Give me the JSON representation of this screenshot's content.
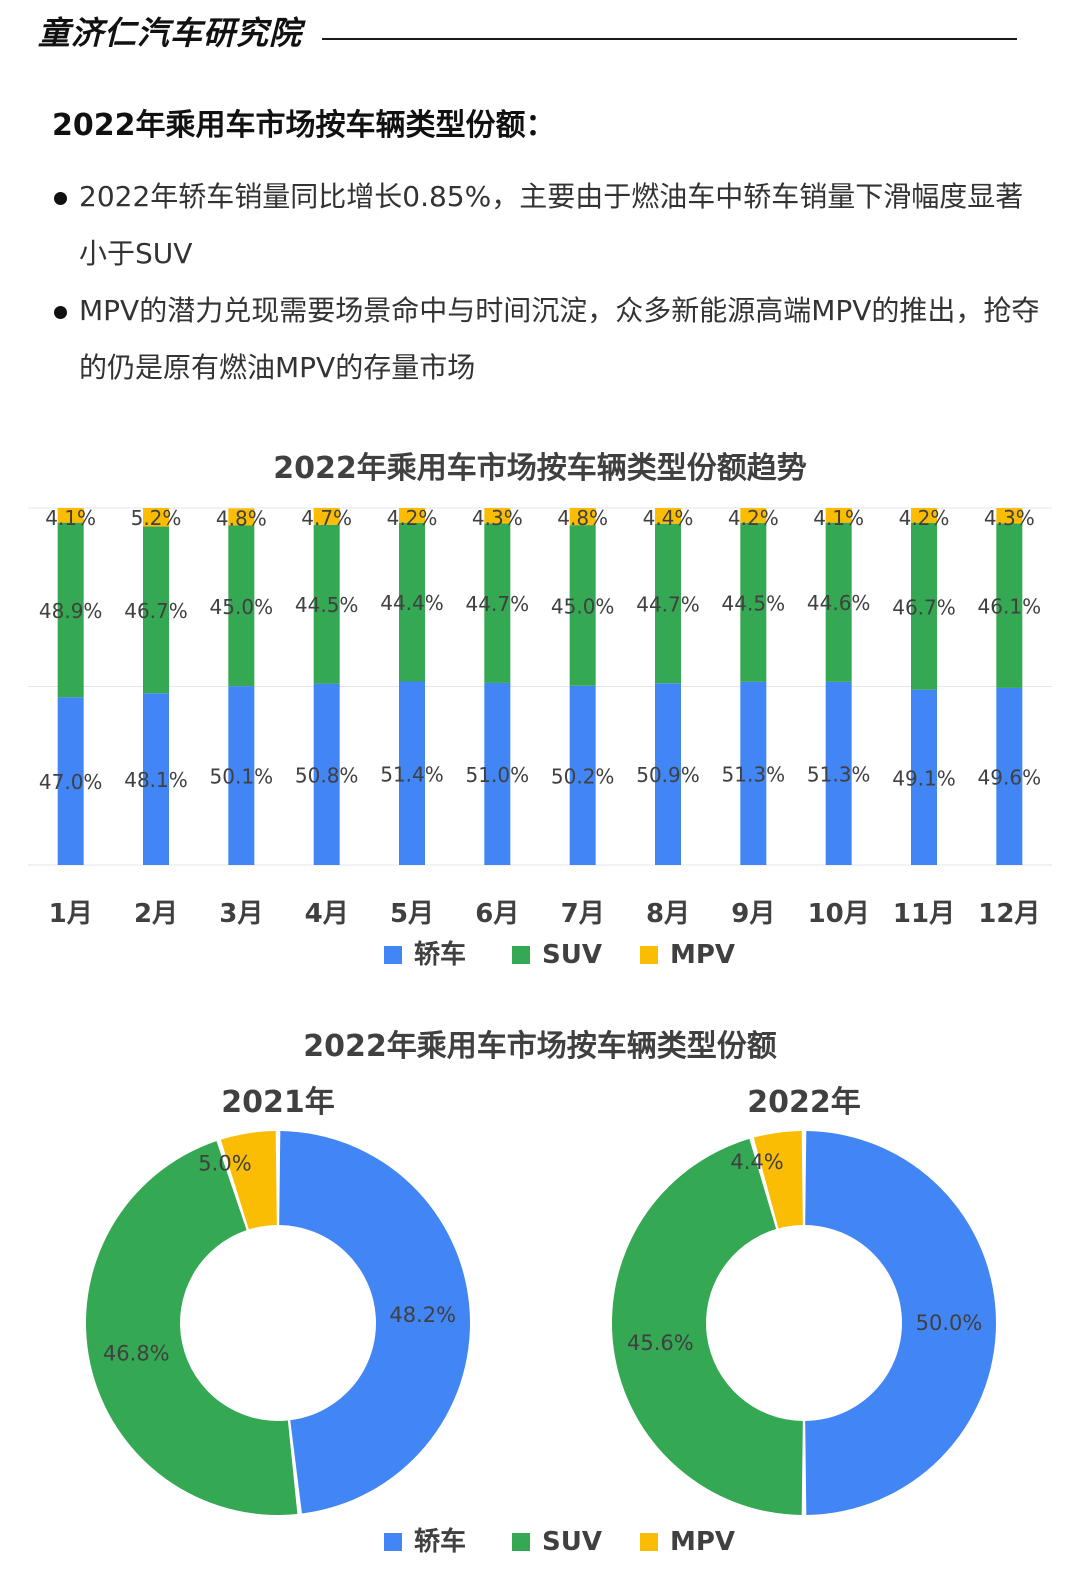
{
  "header": {
    "brand": "童济仁汽车研究院"
  },
  "section": {
    "title": "2022年乘用车市场按车辆类型份额：",
    "bullets": [
      "2022年轿车销量同比增长0.85%，主要由于燃油车中轿车销量下滑幅度显著小于SUV",
      "MPV的潜力兑现需要场景命中与时间沉淀，众多新能源高端MPV的推出，抢夺的仍是原有燃油MPV的存量市场"
    ]
  },
  "colors": {
    "sedan": "#4285f4",
    "suv": "#34a853",
    "mpv": "#fbbc04",
    "text": "#404040"
  },
  "chart_data": [
    {
      "type": "bar",
      "stacked": true,
      "title": "2022年乘用车市场按车辆类型份额趋势",
      "categories": [
        "1月",
        "2月",
        "3月",
        "4月",
        "5月",
        "6月",
        "7月",
        "8月",
        "9月",
        "10月",
        "11月",
        "12月"
      ],
      "series": [
        {
          "name": "轿车",
          "values": [
            47.0,
            48.1,
            50.1,
            50.8,
            51.4,
            51.0,
            50.2,
            50.9,
            51.3,
            51.3,
            49.1,
            49.6
          ],
          "labels": [
            "47.0%",
            "48.1%",
            "50.1%",
            "50.8%",
            "51.4%",
            "51.0%",
            "50.2%",
            "50.9%",
            "51.3%",
            "51.3%",
            "49.1%",
            "49.6%"
          ]
        },
        {
          "name": "SUV",
          "values": [
            48.9,
            46.7,
            45.0,
            44.5,
            44.4,
            44.7,
            45.0,
            44.7,
            44.5,
            44.6,
            46.7,
            46.1
          ],
          "labels": [
            "48.9%",
            "46.7%",
            "45.0%",
            "44.5%",
            "44.4%",
            "44.7%",
            "45.0%",
            "44.7%",
            "44.5%",
            "44.6%",
            "46.7%",
            "46.1%"
          ]
        },
        {
          "name": "MPV",
          "values": [
            4.1,
            5.2,
            4.8,
            4.7,
            4.2,
            4.3,
            4.8,
            4.4,
            4.2,
            4.1,
            4.2,
            4.3
          ],
          "labels": [
            "4.1%",
            "5.2%",
            "4.8%",
            "4.7%",
            "4.2%",
            "4.3%",
            "4.8%",
            "4.4%",
            "4.2%",
            "4.1%",
            "4.2%",
            "4.3%"
          ]
        }
      ],
      "ylim": [
        0,
        100
      ],
      "grid": true,
      "legend": "bottom"
    },
    {
      "type": "pie",
      "donut": true,
      "title": "2022年乘用车市场按车辆类型份额",
      "legend": "bottom",
      "pies": [
        {
          "subtitle": "2021年",
          "slices": [
            {
              "name": "轿车",
              "value": 48.2,
              "label": "48.2%"
            },
            {
              "name": "SUV",
              "value": 46.8,
              "label": "46.8%"
            },
            {
              "name": "MPV",
              "value": 5.0,
              "label": "5.0%"
            }
          ]
        },
        {
          "subtitle": "2022年",
          "slices": [
            {
              "name": "轿车",
              "value": 50.0,
              "label": "50.0%"
            },
            {
              "name": "SUV",
              "value": 45.6,
              "label": "45.6%"
            },
            {
              "name": "MPV",
              "value": 4.4,
              "label": "4.4%"
            }
          ]
        }
      ]
    }
  ]
}
